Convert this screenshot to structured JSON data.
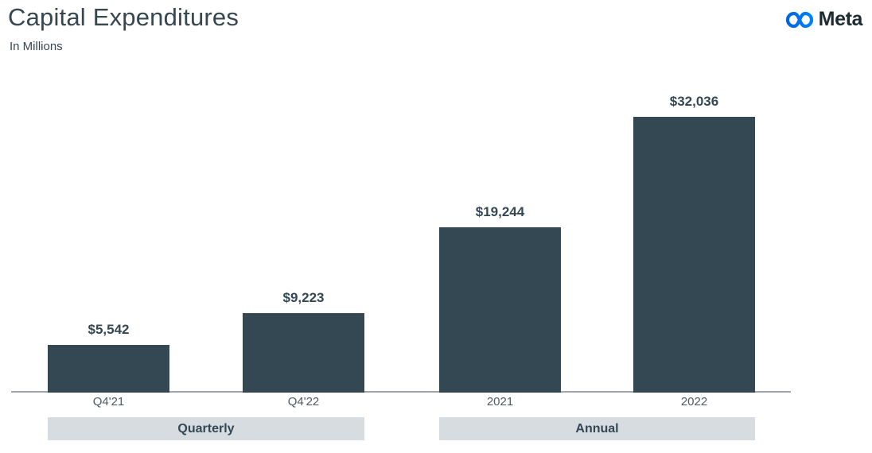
{
  "page": {
    "title": "Capital Expenditures",
    "subtitle": "In Millions"
  },
  "brand": {
    "name": "Meta",
    "infinity_icon_color_start": "#0064E0",
    "infinity_icon_color_end": "#0082FB",
    "wordmark_color": "#1C2B33"
  },
  "colors": {
    "bar": "#344854",
    "value_label": "#344854",
    "tick_label": "#4E5A63",
    "band_background": "#D7DCE1",
    "band_text": "#344854",
    "axis_line": "#9FA6AC",
    "title_text": "#37474F"
  },
  "chart_data": {
    "type": "bar",
    "title": "Capital Expenditures",
    "subtitle": "In Millions",
    "unit": "USD millions",
    "categories": [
      "Q4'21",
      "Q4'22",
      "2021",
      "2022"
    ],
    "values": [
      5542,
      9223,
      19244,
      32036
    ],
    "data_labels": [
      "$5,542",
      "$9,223",
      "$19,244",
      "$32,036"
    ],
    "groups": [
      {
        "label": "Quarterly",
        "categories": [
          "Q4'21",
          "Q4'22"
        ]
      },
      {
        "label": "Annual",
        "categories": [
          "2021",
          "2022"
        ]
      }
    ],
    "xlabel": "",
    "ylabel": "",
    "ylim": [
      0,
      32036
    ],
    "grid": false,
    "legend": false,
    "bar_color": "#344854"
  }
}
